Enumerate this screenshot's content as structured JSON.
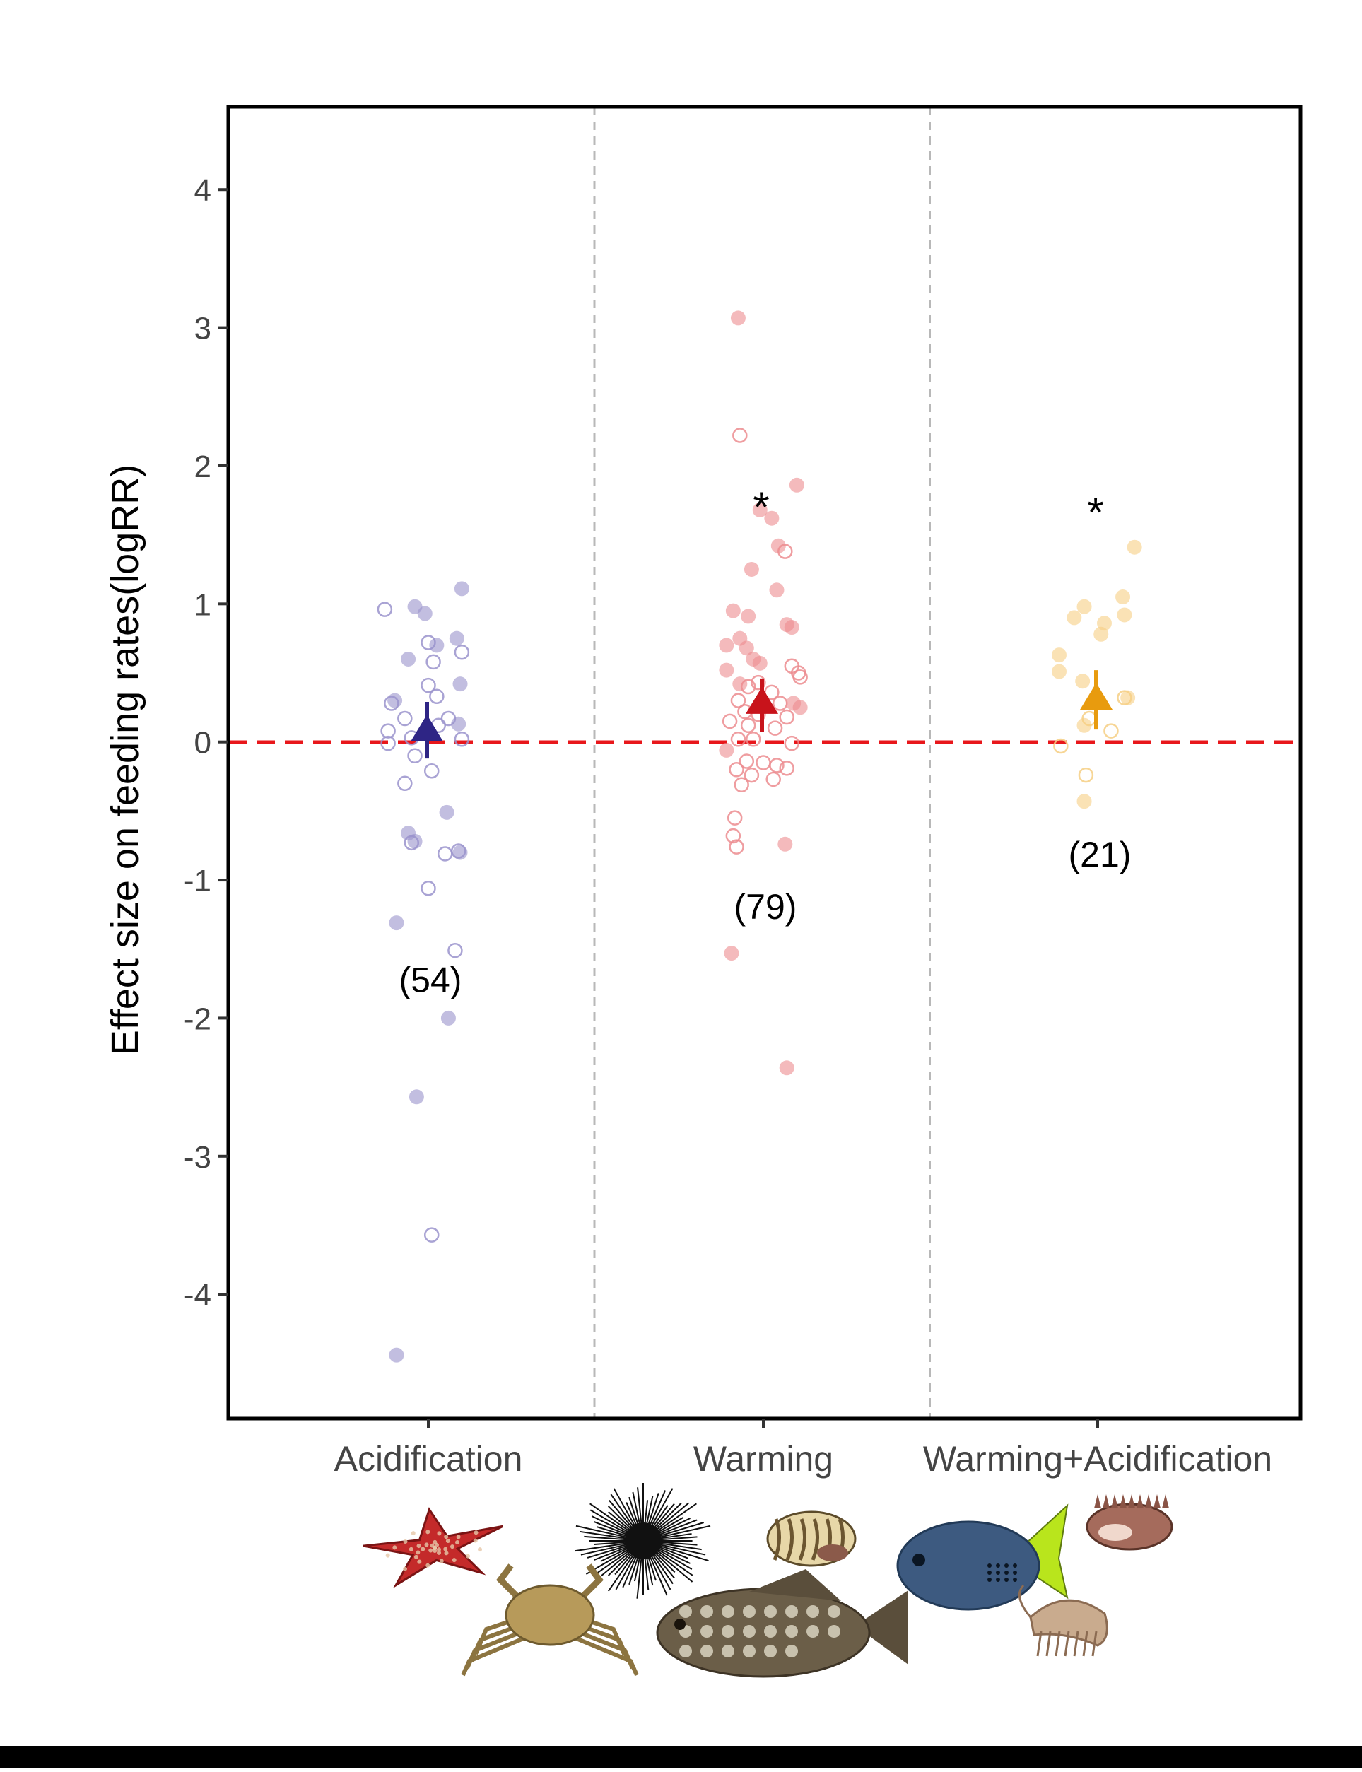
{
  "chart_data": {
    "type": "scatter",
    "ylabel": "Effect size on feeding rates(logRR)",
    "xlabel": "",
    "ylim": [
      -4.9,
      4.6
    ],
    "yticks": [
      4,
      3,
      2,
      1,
      0,
      -1,
      -2,
      -3,
      -4
    ],
    "ytick_labels": [
      "4",
      "3",
      "2",
      "1",
      "0",
      "-1",
      "-2",
      "-3",
      "-4"
    ],
    "categories": [
      "Acidification",
      "Warming",
      "Warming+Acidification"
    ],
    "reference_line": 0,
    "grid": false,
    "series": [
      {
        "category": "Acidification",
        "color": "#2e2585",
        "point_color": "#9a93cc",
        "n_label": "(54)",
        "significance": "",
        "mean": 0.07,
        "ci": [
          -0.12,
          0.29
        ],
        "points": [
          {
            "dx": -0.26,
            "y": 0.96,
            "open": true
          },
          {
            "dx": -0.08,
            "y": 0.98,
            "open": false
          },
          {
            "dx": -0.02,
            "y": 0.93,
            "open": false
          },
          {
            "dx": 0.2,
            "y": 1.11,
            "open": false
          },
          {
            "dx": 0.0,
            "y": 0.72,
            "open": true
          },
          {
            "dx": 0.05,
            "y": 0.7,
            "open": false
          },
          {
            "dx": 0.17,
            "y": 0.75,
            "open": false
          },
          {
            "dx": 0.2,
            "y": 0.65,
            "open": true
          },
          {
            "dx": -0.12,
            "y": 0.6,
            "open": false
          },
          {
            "dx": 0.03,
            "y": 0.58,
            "open": true
          },
          {
            "dx": -0.2,
            "y": 0.3,
            "open": false
          },
          {
            "dx": 0.0,
            "y": 0.41,
            "open": true
          },
          {
            "dx": 0.19,
            "y": 0.42,
            "open": false
          },
          {
            "dx": -0.22,
            "y": 0.28,
            "open": true
          },
          {
            "dx": -0.14,
            "y": 0.17,
            "open": true
          },
          {
            "dx": 0.05,
            "y": 0.33,
            "open": true
          },
          {
            "dx": 0.12,
            "y": 0.17,
            "open": true
          },
          {
            "dx": 0.18,
            "y": 0.13,
            "open": false
          },
          {
            "dx": -0.24,
            "y": 0.08,
            "open": true
          },
          {
            "dx": -0.1,
            "y": 0.03,
            "open": true
          },
          {
            "dx": 0.06,
            "y": 0.12,
            "open": true
          },
          {
            "dx": 0.2,
            "y": 0.02,
            "open": true
          },
          {
            "dx": -0.24,
            "y": -0.01,
            "open": true
          },
          {
            "dx": -0.08,
            "y": -0.1,
            "open": true
          },
          {
            "dx": 0.02,
            "y": -0.21,
            "open": true
          },
          {
            "dx": -0.14,
            "y": -0.3,
            "open": true
          },
          {
            "dx": 0.11,
            "y": -0.51,
            "open": false
          },
          {
            "dx": -0.12,
            "y": -0.66,
            "open": false
          },
          {
            "dx": -0.08,
            "y": -0.72,
            "open": false
          },
          {
            "dx": -0.1,
            "y": -0.73,
            "open": true
          },
          {
            "dx": 0.1,
            "y": -0.81,
            "open": true
          },
          {
            "dx": 0.18,
            "y": -0.79,
            "open": true
          },
          {
            "dx": 0.19,
            "y": -0.8,
            "open": false
          },
          {
            "dx": 0.0,
            "y": -1.06,
            "open": true
          },
          {
            "dx": -0.19,
            "y": -1.31,
            "open": false
          },
          {
            "dx": 0.16,
            "y": -1.51,
            "open": true
          },
          {
            "dx": 0.12,
            "y": -2.0,
            "open": false
          },
          {
            "dx": -0.07,
            "y": -2.57,
            "open": false
          },
          {
            "dx": 0.02,
            "y": -3.57,
            "open": true
          },
          {
            "dx": -0.19,
            "y": -4.44,
            "open": false
          }
        ]
      },
      {
        "category": "Warming",
        "color": "#c8131b",
        "point_color": "#ec8c8f",
        "n_label": "(79)",
        "significance": "*",
        "mean": 0.27,
        "ci": [
          0.07,
          0.46
        ],
        "points": [
          {
            "dx": -0.15,
            "y": 3.07,
            "open": false
          },
          {
            "dx": -0.14,
            "y": 2.22,
            "open": true
          },
          {
            "dx": 0.2,
            "y": 1.86,
            "open": false
          },
          {
            "dx": -0.02,
            "y": 1.68,
            "open": false
          },
          {
            "dx": 0.05,
            "y": 1.62,
            "open": false
          },
          {
            "dx": 0.09,
            "y": 1.42,
            "open": false
          },
          {
            "dx": 0.13,
            "y": 1.38,
            "open": true
          },
          {
            "dx": -0.07,
            "y": 1.25,
            "open": false
          },
          {
            "dx": 0.08,
            "y": 1.1,
            "open": false
          },
          {
            "dx": -0.18,
            "y": 0.95,
            "open": false
          },
          {
            "dx": -0.09,
            "y": 0.91,
            "open": false
          },
          {
            "dx": 0.14,
            "y": 0.85,
            "open": false
          },
          {
            "dx": 0.17,
            "y": 0.83,
            "open": false
          },
          {
            "dx": -0.14,
            "y": 0.75,
            "open": false
          },
          {
            "dx": -0.22,
            "y": 0.7,
            "open": false
          },
          {
            "dx": -0.1,
            "y": 0.68,
            "open": false
          },
          {
            "dx": -0.06,
            "y": 0.6,
            "open": false
          },
          {
            "dx": -0.02,
            "y": 0.57,
            "open": false
          },
          {
            "dx": 0.17,
            "y": 0.55,
            "open": true
          },
          {
            "dx": 0.21,
            "y": 0.5,
            "open": true
          },
          {
            "dx": -0.22,
            "y": 0.52,
            "open": false
          },
          {
            "dx": 0.22,
            "y": 0.47,
            "open": true
          },
          {
            "dx": -0.14,
            "y": 0.42,
            "open": false
          },
          {
            "dx": -0.09,
            "y": 0.4,
            "open": true
          },
          {
            "dx": -0.03,
            "y": 0.43,
            "open": true
          },
          {
            "dx": 0.05,
            "y": 0.36,
            "open": true
          },
          {
            "dx": -0.15,
            "y": 0.3,
            "open": true
          },
          {
            "dx": 0.1,
            "y": 0.28,
            "open": true
          },
          {
            "dx": 0.18,
            "y": 0.28,
            "open": false
          },
          {
            "dx": 0.22,
            "y": 0.25,
            "open": false
          },
          {
            "dx": -0.11,
            "y": 0.22,
            "open": true
          },
          {
            "dx": -0.03,
            "y": 0.2,
            "open": true
          },
          {
            "dx": 0.14,
            "y": 0.18,
            "open": true
          },
          {
            "dx": -0.2,
            "y": 0.15,
            "open": true
          },
          {
            "dx": -0.09,
            "y": 0.12,
            "open": true
          },
          {
            "dx": 0.07,
            "y": 0.1,
            "open": true
          },
          {
            "dx": -0.06,
            "y": 0.02,
            "open": true
          },
          {
            "dx": -0.15,
            "y": 0.02,
            "open": true
          },
          {
            "dx": 0.17,
            "y": -0.01,
            "open": true
          },
          {
            "dx": -0.22,
            "y": -0.06,
            "open": false
          },
          {
            "dx": -0.1,
            "y": -0.14,
            "open": true
          },
          {
            "dx": 0.0,
            "y": -0.15,
            "open": true
          },
          {
            "dx": 0.08,
            "y": -0.17,
            "open": true
          },
          {
            "dx": 0.14,
            "y": -0.19,
            "open": true
          },
          {
            "dx": -0.16,
            "y": -0.2,
            "open": true
          },
          {
            "dx": -0.07,
            "y": -0.24,
            "open": true
          },
          {
            "dx": 0.06,
            "y": -0.27,
            "open": true
          },
          {
            "dx": -0.13,
            "y": -0.31,
            "open": true
          },
          {
            "dx": -0.17,
            "y": -0.55,
            "open": true
          },
          {
            "dx": -0.18,
            "y": -0.68,
            "open": true
          },
          {
            "dx": -0.16,
            "y": -0.76,
            "open": true
          },
          {
            "dx": 0.13,
            "y": -0.74,
            "open": false
          },
          {
            "dx": -0.19,
            "y": -1.53,
            "open": false
          },
          {
            "dx": 0.14,
            "y": -2.36,
            "open": false
          }
        ]
      },
      {
        "category": "Warming+Acidification",
        "color": "#e89b0e",
        "point_color": "#f6cf84",
        "n_label": "(21)",
        "significance": "*",
        "mean": 0.3,
        "ci": [
          0.09,
          0.52
        ],
        "points": [
          {
            "dx": 0.22,
            "y": 1.41,
            "open": false
          },
          {
            "dx": 0.15,
            "y": 1.05,
            "open": false
          },
          {
            "dx": -0.08,
            "y": 0.98,
            "open": false
          },
          {
            "dx": -0.14,
            "y": 0.9,
            "open": false
          },
          {
            "dx": 0.04,
            "y": 0.86,
            "open": false
          },
          {
            "dx": 0.16,
            "y": 0.92,
            "open": false
          },
          {
            "dx": 0.02,
            "y": 0.78,
            "open": false
          },
          {
            "dx": -0.23,
            "y": 0.63,
            "open": false
          },
          {
            "dx": -0.23,
            "y": 0.51,
            "open": false
          },
          {
            "dx": -0.09,
            "y": 0.44,
            "open": false
          },
          {
            "dx": 0.16,
            "y": 0.32,
            "open": true
          },
          {
            "dx": 0.18,
            "y": 0.32,
            "open": false
          },
          {
            "dx": -0.05,
            "y": 0.17,
            "open": true
          },
          {
            "dx": -0.08,
            "y": 0.12,
            "open": false
          },
          {
            "dx": 0.08,
            "y": 0.08,
            "open": true
          },
          {
            "dx": -0.22,
            "y": -0.03,
            "open": true
          },
          {
            "dx": -0.07,
            "y": -0.24,
            "open": true
          },
          {
            "dx": -0.08,
            "y": -0.43,
            "open": false
          }
        ]
      }
    ],
    "annotations": [
      {
        "text": "(54)",
        "category": "Acidification",
        "y": -1.72
      },
      {
        "text": "(79)",
        "category": "Warming",
        "y": -1.19
      },
      {
        "text": "(21)",
        "category": "Warming+Acidification",
        "y": -0.81
      },
      {
        "text": "*",
        "category": "Warming",
        "y": 1.75
      },
      {
        "text": "*",
        "category": "Warming+Acidification",
        "y": 1.71
      }
    ]
  },
  "organisms": [
    {
      "name": "sea-star-icon",
      "color": "#c42a2a"
    },
    {
      "name": "sea-urchin-icon",
      "color": "#111111"
    },
    {
      "name": "sea-snail-icon",
      "color": "#b59b5f"
    },
    {
      "name": "surgeonfish-icon",
      "color": "#3d5a80"
    },
    {
      "name": "murex-shell-icon",
      "color": "#a56b5c"
    },
    {
      "name": "crab-icon",
      "color": "#b79a5a"
    },
    {
      "name": "grouper-fish-icon",
      "color": "#6b5e48"
    },
    {
      "name": "amphipod-icon",
      "color": "#c9ab8e"
    }
  ]
}
